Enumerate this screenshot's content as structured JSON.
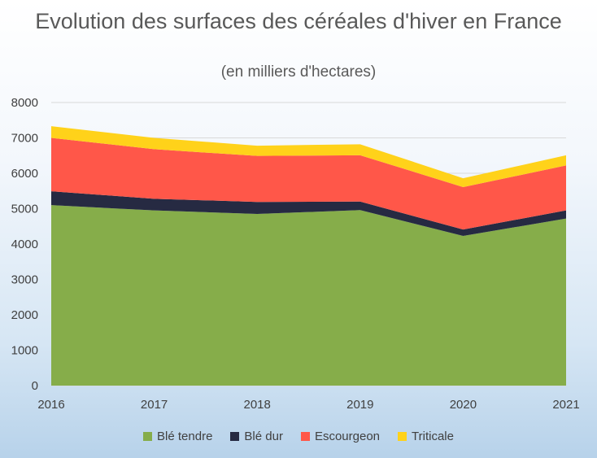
{
  "chart_data": {
    "type": "area",
    "stacked": true,
    "title": "Evolution des surfaces des céréales d'hiver en France",
    "subtitle": "(en milliers d'hectares)",
    "x": [
      "2016",
      "2017",
      "2018",
      "2019",
      "2020",
      "2021"
    ],
    "series": [
      {
        "name": "Blé tendre",
        "color": "#86ad4a",
        "values": [
          5100,
          4950,
          4850,
          4960,
          4230,
          4720
        ]
      },
      {
        "name": "Blé dur",
        "color": "#262a42",
        "values": [
          390,
          330,
          340,
          240,
          180,
          230
        ]
      },
      {
        "name": "Escourgeon",
        "color": "#ff5749",
        "values": [
          1510,
          1400,
          1300,
          1310,
          1200,
          1270
        ]
      },
      {
        "name": "Triticale",
        "color": "#ffd21a",
        "values": [
          330,
          320,
          290,
          310,
          250,
          290
        ]
      }
    ],
    "ylim": [
      0,
      8000
    ],
    "yticks": [
      0,
      1000,
      2000,
      3000,
      4000,
      5000,
      6000,
      7000,
      8000
    ],
    "grid": true,
    "legend": "bottom"
  }
}
